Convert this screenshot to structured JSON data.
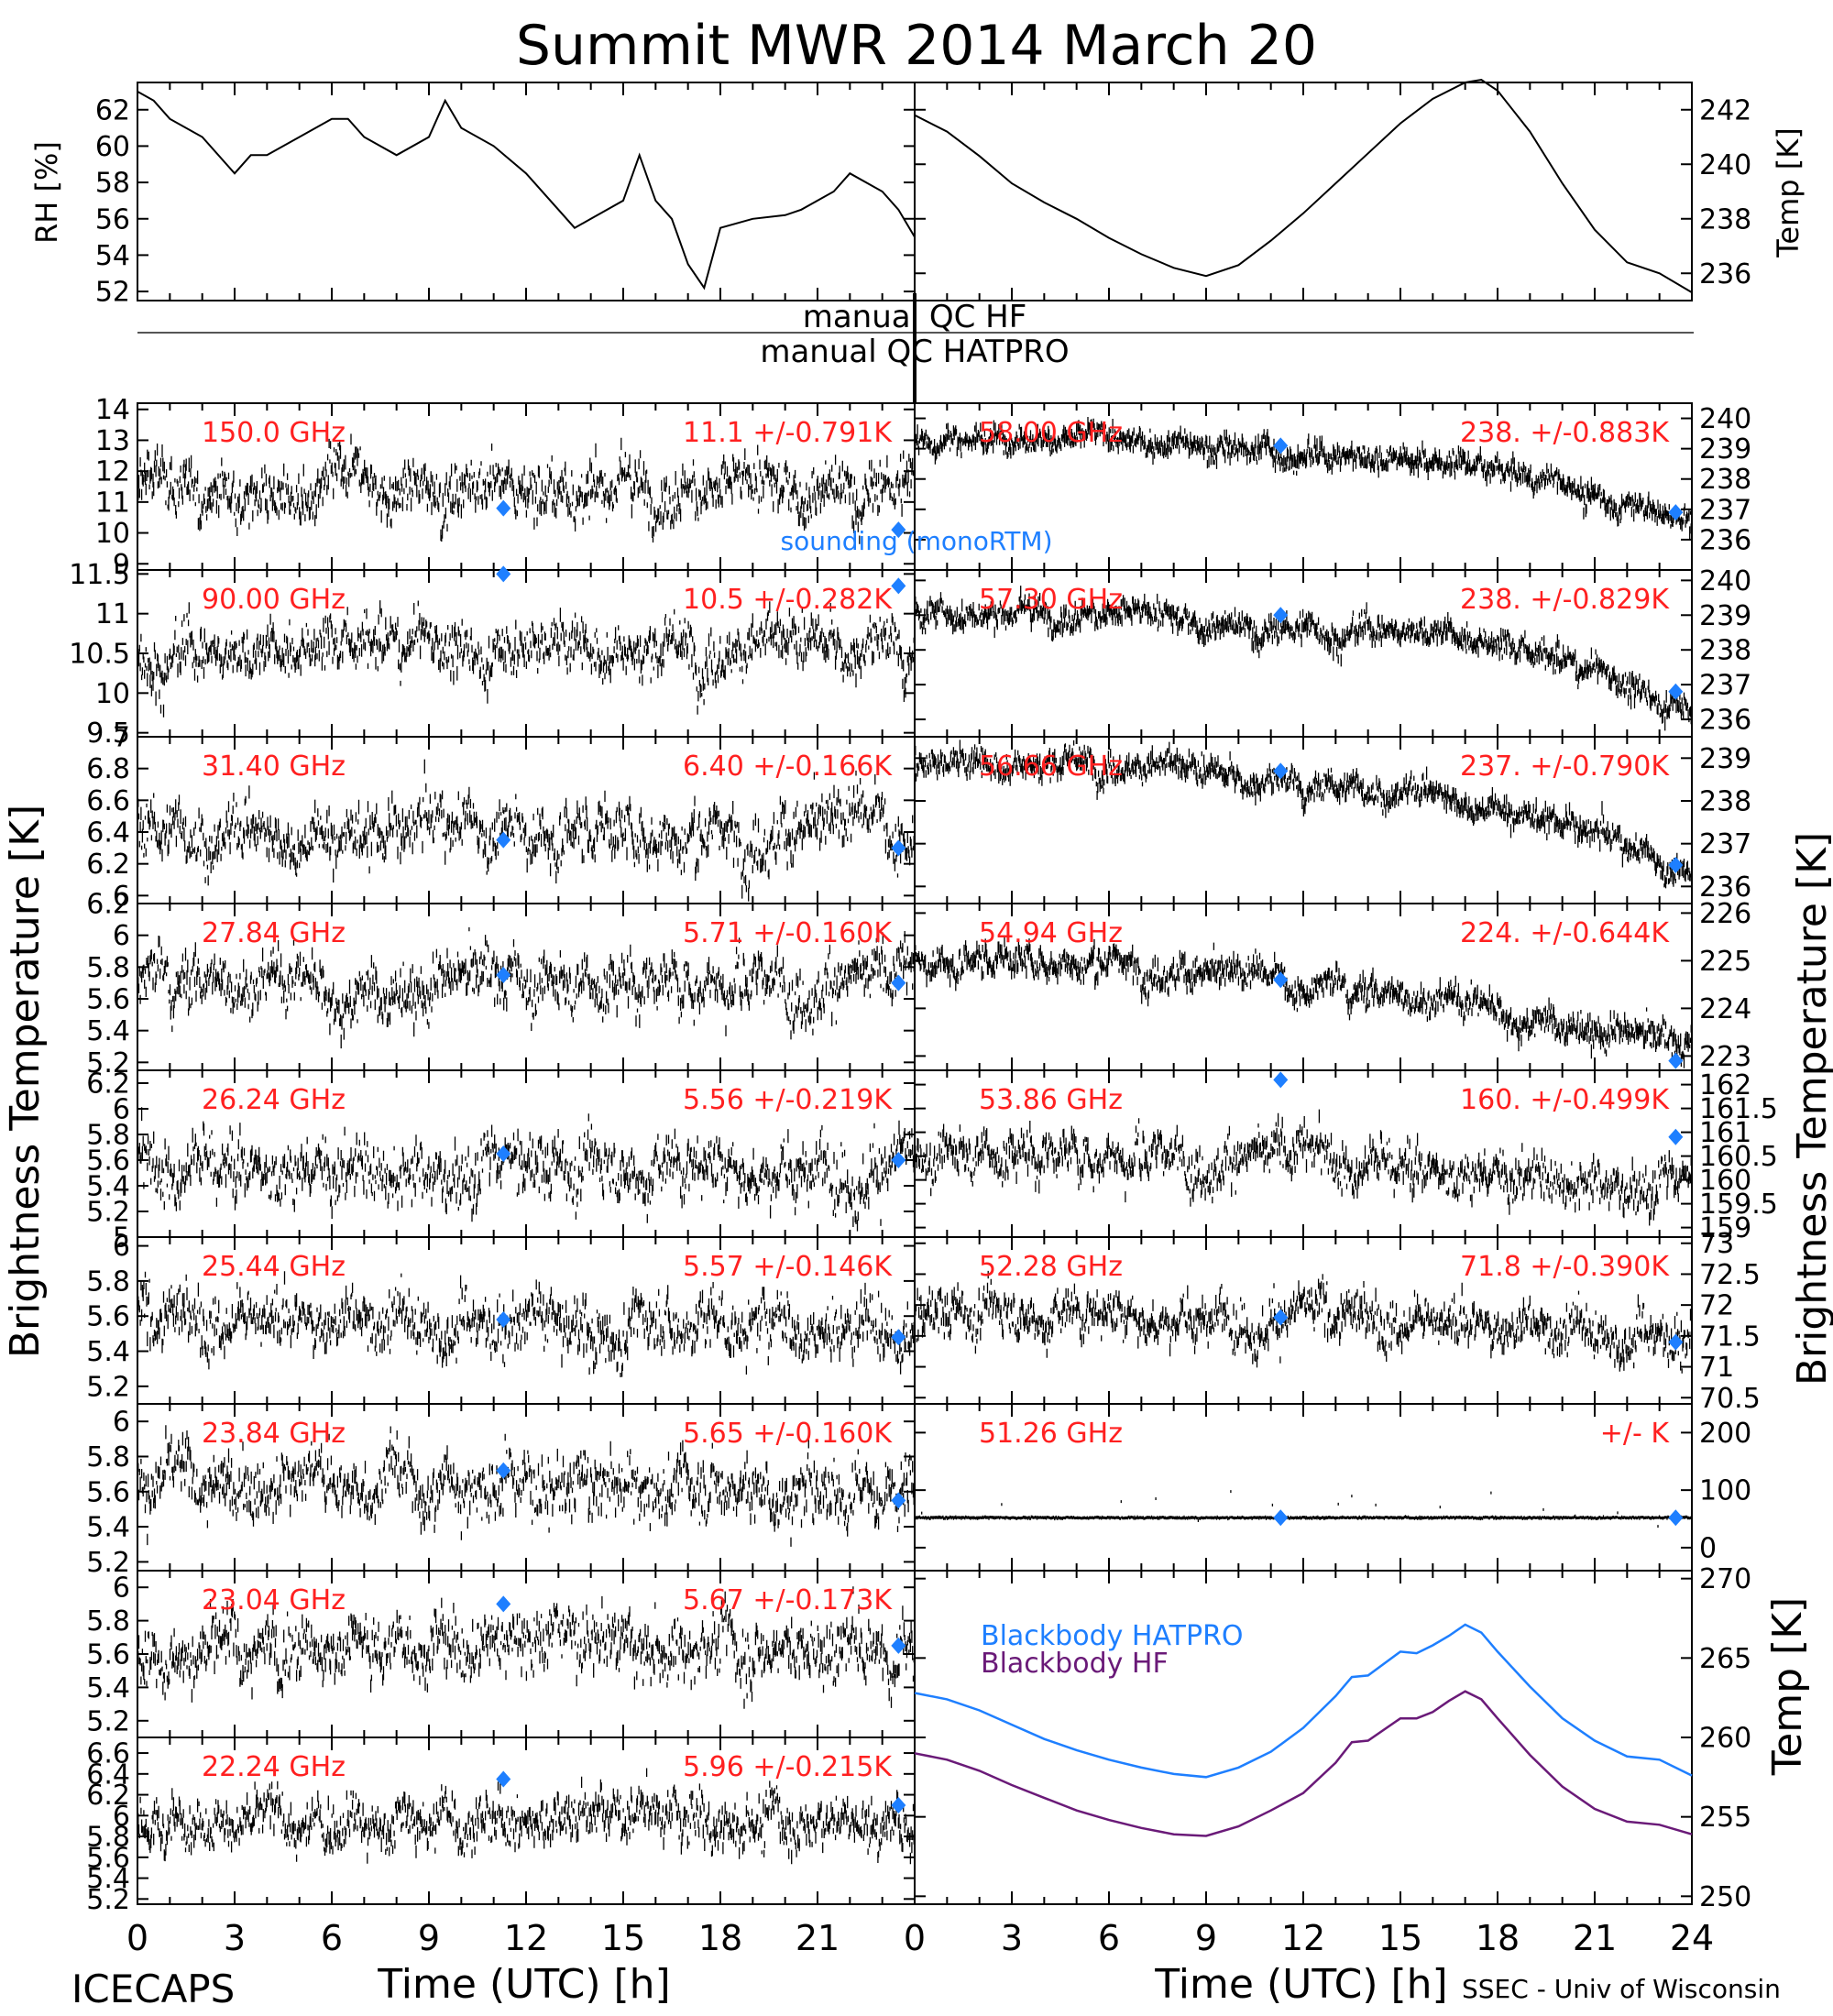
{
  "title": "Summit MWR 2014 March 20",
  "footer": {
    "left": "ICECAPS",
    "right": "SSEC - Univ of Wisconsin"
  },
  "colors": {
    "trace": "#000000",
    "annotation": "#ff2020",
    "sounding": "#1e7fff",
    "blackbody_hatpro": "#1e7fff",
    "blackbody_hf": "#6a1a78"
  },
  "axes": {
    "x_label": "Time (UTC) [h]",
    "x_ticks": [
      0,
      3,
      6,
      9,
      12,
      15,
      18,
      21,
      24
    ],
    "left_ylabel": "Brightness Temperature [K]",
    "right_ylabel": "Brightness Temperature [K]"
  },
  "qc": {
    "hf": "manual QC HF",
    "hatpro": "manual QC HATPRO"
  },
  "legend": {
    "sounding": "sounding (monoRTM)",
    "blackbody_hatpro": "Blackbody HATPRO",
    "blackbody_hf": "Blackbody HF"
  },
  "chart_data": [
    {
      "id": "rh",
      "type": "line",
      "ylabel": "RH [%]",
      "ylim": [
        51.5,
        63.5
      ],
      "yticks": [
        52,
        54,
        56,
        58,
        60,
        62
      ],
      "x": [
        0,
        0.5,
        1,
        2,
        3,
        3.5,
        4,
        5,
        6,
        6.5,
        7,
        8,
        9,
        9.5,
        10,
        11,
        12,
        13,
        13.5,
        14,
        15,
        15.5,
        16,
        16.5,
        17,
        17.5,
        18,
        19,
        20,
        20.5,
        21,
        21.5,
        22,
        23,
        23.5,
        24
      ],
      "y": [
        63,
        62.5,
        61.5,
        60.5,
        58.5,
        59.5,
        59.5,
        60.5,
        61.5,
        61.5,
        60.5,
        59.5,
        60.5,
        62.5,
        61,
        60,
        58.5,
        56.5,
        55.5,
        56,
        57,
        59.5,
        57,
        56,
        53.5,
        52.2,
        55.5,
        56,
        56.2,
        56.5,
        57,
        57.5,
        58.5,
        57.5,
        56.5,
        55
      ]
    },
    {
      "id": "temp",
      "type": "line",
      "ylabel": "Temp [K]",
      "ylim": [
        235,
        243
      ],
      "yticks": [
        236,
        238,
        240,
        242
      ],
      "x": [
        0,
        1,
        2,
        3,
        4,
        5,
        6,
        7,
        8,
        9,
        10,
        11,
        12,
        13,
        14,
        15,
        16,
        17,
        17.5,
        18,
        19,
        20,
        21,
        22,
        23,
        24
      ],
      "y": [
        241.8,
        241.2,
        240.3,
        239.3,
        238.6,
        238,
        237.3,
        236.7,
        236.2,
        235.9,
        236.3,
        237.2,
        238.2,
        239.3,
        240.4,
        241.5,
        242.4,
        243,
        243.1,
        242.7,
        241.2,
        239.3,
        237.6,
        236.4,
        236,
        235.3
      ]
    },
    {
      "id": "ch150",
      "type": "scatter",
      "freq_label": "150.0 GHz",
      "mean": "11.1",
      "std": "0.791K",
      "ylim": [
        8.8,
        14.2
      ],
      "yticks": [
        9,
        10,
        11,
        12,
        13,
        14
      ],
      "center": 11.5,
      "noise": 0.8,
      "sounding": [
        [
          11.3,
          10.8
        ],
        [
          23.5,
          10.1
        ]
      ]
    },
    {
      "id": "ch90",
      "type": "scatter",
      "freq_label": "90.00 GHz",
      "mean": "10.5",
      "std": "0.282K",
      "ylim": [
        9.45,
        11.55
      ],
      "yticks": [
        9.5,
        10.0,
        10.5,
        11.0,
        11.5
      ],
      "center": 10.55,
      "noise": 0.3,
      "sounding": [
        [
          11.3,
          11.5
        ],
        [
          23.5,
          11.35
        ]
      ]
    },
    {
      "id": "ch31",
      "type": "scatter",
      "freq_label": "31.40 GHz",
      "mean": "6.40",
      "std": "0.166K",
      "ylim": [
        5.95,
        7.0
      ],
      "yticks": [
        6.0,
        6.2,
        6.4,
        6.6,
        6.8,
        7.0
      ],
      "center": 6.4,
      "noise": 0.17,
      "sounding": [
        [
          11.3,
          6.35
        ],
        [
          23.5,
          6.3
        ]
      ]
    },
    {
      "id": "ch27",
      "type": "scatter",
      "freq_label": "27.84 GHz",
      "mean": "5.71",
      "std": "0.160K",
      "ylim": [
        5.15,
        6.2
      ],
      "yticks": [
        5.2,
        5.4,
        5.6,
        5.8,
        6.0,
        6.2
      ],
      "center": 5.7,
      "noise": 0.16,
      "sounding": [
        [
          11.3,
          5.75
        ],
        [
          23.5,
          5.7
        ]
      ]
    },
    {
      "id": "ch26",
      "type": "scatter",
      "freq_label": "26.24 GHz",
      "mean": "5.56",
      "std": "0.219K",
      "ylim": [
        5.0,
        6.3
      ],
      "yticks": [
        5.0,
        5.2,
        5.4,
        5.6,
        5.8,
        6.0,
        6.2
      ],
      "center": 5.55,
      "noise": 0.22,
      "sounding": [
        [
          11.3,
          5.65
        ],
        [
          23.5,
          5.6
        ]
      ]
    },
    {
      "id": "ch25",
      "type": "scatter",
      "freq_label": "25.44 GHz",
      "mean": "5.57",
      "std": "0.146K",
      "ylim": [
        5.1,
        6.05
      ],
      "yticks": [
        5.2,
        5.4,
        5.6,
        5.8,
        6.0
      ],
      "center": 5.57,
      "noise": 0.15,
      "sounding": [
        [
          11.3,
          5.58
        ],
        [
          23.5,
          5.48
        ]
      ]
    },
    {
      "id": "ch23_84",
      "type": "scatter",
      "freq_label": "23.84 GHz",
      "mean": "5.65",
      "std": "0.160K",
      "ylim": [
        5.15,
        6.1
      ],
      "yticks": [
        5.2,
        5.4,
        5.6,
        5.8,
        6.0
      ],
      "center": 5.65,
      "noise": 0.16,
      "sounding": [
        [
          11.3,
          5.72
        ],
        [
          23.5,
          5.55
        ]
      ]
    },
    {
      "id": "ch23_04",
      "type": "scatter",
      "freq_label": "23.04 GHz",
      "mean": "5.67",
      "std": "0.173K",
      "ylim": [
        5.1,
        6.1
      ],
      "yticks": [
        5.2,
        5.4,
        5.6,
        5.8,
        6.0
      ],
      "center": 5.67,
      "noise": 0.17,
      "sounding": [
        [
          11.3,
          5.9
        ],
        [
          23.5,
          5.65
        ]
      ]
    },
    {
      "id": "ch22",
      "type": "scatter",
      "freq_label": "22.24 GHz",
      "mean": "5.96",
      "std": "0.215K",
      "ylim": [
        5.15,
        6.75
      ],
      "yticks": [
        5.2,
        5.4,
        5.6,
        5.8,
        6.0,
        6.2,
        6.4,
        6.6
      ],
      "center": 5.96,
      "noise": 0.22,
      "sounding": [
        [
          11.3,
          6.35
        ],
        [
          23.5,
          6.1
        ]
      ]
    },
    {
      "id": "ch58",
      "type": "scatter",
      "freq_label": "58.00 GHz",
      "mean": "238.",
      "std": "0.883K",
      "ylim": [
        235.0,
        240.5
      ],
      "yticks": [
        236,
        237,
        238,
        239,
        240
      ],
      "trend": [
        [
          0,
          239.3
        ],
        [
          6,
          239.4
        ],
        [
          11,
          238.9
        ],
        [
          16,
          238.6
        ],
        [
          20,
          237.8
        ],
        [
          24,
          236.6
        ]
      ],
      "noise": 0.35,
      "sounding": [
        [
          11.3,
          239.1
        ],
        [
          23.5,
          236.9
        ]
      ]
    },
    {
      "id": "ch57",
      "type": "scatter",
      "freq_label": "57.30 GHz",
      "mean": "238.",
      "std": "0.829K",
      "ylim": [
        235.5,
        240.3
      ],
      "yticks": [
        236,
        237,
        238,
        239,
        240
      ],
      "trend": [
        [
          0,
          239.0
        ],
        [
          6,
          239.1
        ],
        [
          11,
          238.6
        ],
        [
          16,
          238.6
        ],
        [
          20,
          237.6
        ],
        [
          24,
          236.3
        ]
      ],
      "noise": 0.35,
      "sounding": [
        [
          11.3,
          239.0
        ],
        [
          23.5,
          236.8
        ]
      ]
    },
    {
      "id": "ch56",
      "type": "scatter",
      "freq_label": "56.66 GHz",
      "mean": "237.",
      "std": "0.790K",
      "ylim": [
        235.6,
        239.5
      ],
      "yticks": [
        236,
        237,
        238,
        239
      ],
      "trend": [
        [
          0,
          238.8
        ],
        [
          6,
          238.9
        ],
        [
          11,
          238.4
        ],
        [
          16,
          238.2
        ],
        [
          20,
          237.5
        ],
        [
          24,
          236.2
        ]
      ],
      "noise": 0.3,
      "sounding": [
        [
          11.3,
          238.7
        ],
        [
          23.5,
          236.5
        ]
      ]
    },
    {
      "id": "ch54",
      "type": "scatter",
      "freq_label": "54.94 GHz",
      "mean": "224.",
      "std": "0.644K",
      "ylim": [
        222.7,
        226.2
      ],
      "yticks": [
        223,
        224,
        225,
        226
      ],
      "trend": [
        [
          0,
          225.0
        ],
        [
          6,
          225.0
        ],
        [
          11,
          224.5
        ],
        [
          16,
          224.2
        ],
        [
          20,
          223.8
        ],
        [
          24,
          223.1
        ]
      ],
      "noise": 0.3,
      "sounding": [
        [
          11.3,
          224.6
        ],
        [
          23.5,
          222.9
        ]
      ]
    },
    {
      "id": "ch53",
      "type": "scatter",
      "freq_label": "53.86 GHz",
      "mean": "160.",
      "std": "0.499K",
      "ylim": [
        158.8,
        162.3
      ],
      "yticks": [
        159.0,
        159.5,
        160.0,
        160.5,
        161.0,
        161.5,
        162.0
      ],
      "trend": [
        [
          0,
          160.6
        ],
        [
          12,
          160.4
        ],
        [
          24,
          159.9
        ]
      ],
      "noise": 0.45,
      "sounding": [
        [
          11.3,
          162.1
        ],
        [
          23.5,
          160.9
        ]
      ]
    },
    {
      "id": "ch52",
      "type": "scatter",
      "freq_label": "52.28 GHz",
      "mean": "71.8",
      "std": "0.390K",
      "ylim": [
        70.4,
        73.1
      ],
      "yticks": [
        70.5,
        71.0,
        71.5,
        72.0,
        72.5,
        73.0
      ],
      "trend": [
        [
          0,
          71.9
        ],
        [
          12,
          71.8
        ],
        [
          24,
          71.5
        ]
      ],
      "noise": 0.35,
      "sounding": [
        [
          11.3,
          71.8
        ],
        [
          23.5,
          71.4
        ]
      ]
    },
    {
      "id": "ch51",
      "type": "scatter",
      "freq_label": "51.26 GHz",
      "mean": "",
      "std": "K",
      "ylim": [
        -40,
        250
      ],
      "yticks": [
        0,
        100,
        200
      ],
      "flat": 52,
      "sounding": [
        [
          11.3,
          52
        ],
        [
          23.5,
          52
        ]
      ]
    },
    {
      "id": "blackbody",
      "type": "line",
      "ylabel": "Temp [K]",
      "ylim": [
        249.5,
        270.5
      ],
      "yticks": [
        250,
        255,
        260,
        265,
        270
      ],
      "series": [
        {
          "name": "Blackbody HATPRO",
          "x": [
            0,
            1,
            2,
            3,
            4,
            5,
            6,
            7,
            8,
            9,
            10,
            11,
            12,
            13,
            13.5,
            14,
            15,
            15.5,
            16,
            16.5,
            17,
            17.5,
            18,
            19,
            20,
            21,
            22,
            23,
            24
          ],
          "y": [
            262.8,
            262.4,
            261.7,
            260.8,
            259.9,
            259.2,
            258.6,
            258.1,
            257.7,
            257.5,
            258.1,
            259.1,
            260.6,
            262.6,
            263.8,
            263.9,
            265.4,
            265.3,
            265.8,
            266.4,
            267.1,
            266.6,
            265.4,
            263.2,
            261.2,
            259.8,
            258.8,
            258.6,
            257.6
          ]
        },
        {
          "name": "Blackbody HF",
          "x": [
            0,
            1,
            2,
            3,
            4,
            5,
            6,
            7,
            8,
            9,
            10,
            11,
            12,
            13,
            13.5,
            14,
            15,
            15.5,
            16,
            16.5,
            17,
            17.5,
            18,
            19,
            20,
            21,
            22,
            23,
            24
          ],
          "y": [
            259.0,
            258.6,
            257.9,
            257.0,
            256.2,
            255.4,
            254.8,
            254.3,
            253.9,
            253.8,
            254.4,
            255.4,
            256.5,
            258.4,
            259.7,
            259.8,
            261.2,
            261.2,
            261.6,
            262.3,
            262.9,
            262.4,
            261.2,
            258.9,
            256.9,
            255.5,
            254.7,
            254.5,
            253.9
          ]
        }
      ]
    }
  ]
}
